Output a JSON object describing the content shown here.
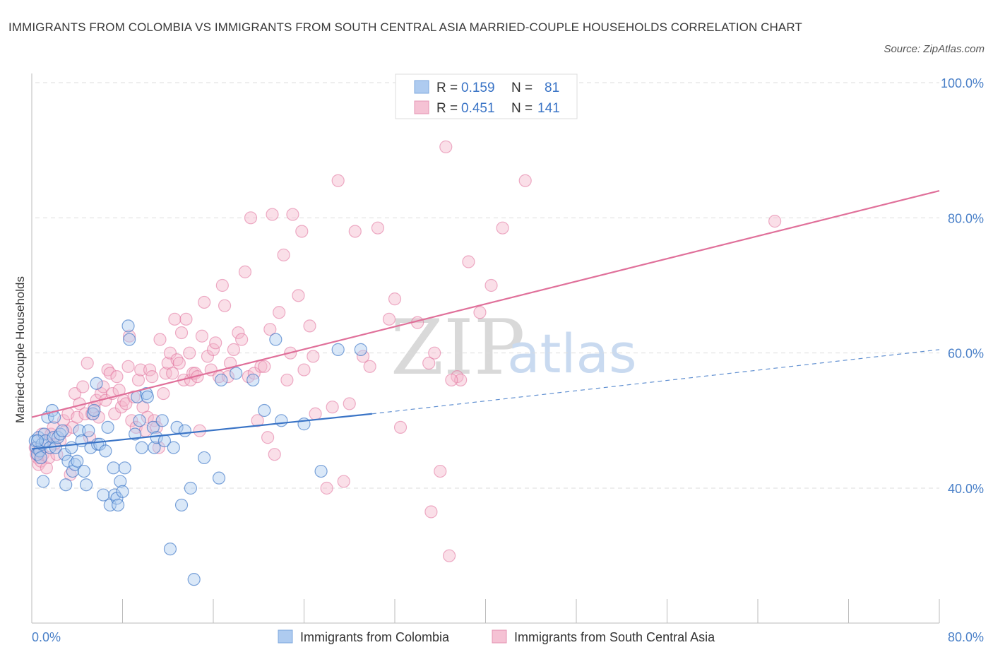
{
  "title": "IMMIGRANTS FROM COLOMBIA VS IMMIGRANTS FROM SOUTH CENTRAL ASIA MARRIED-COUPLE HOUSEHOLDS CORRELATION CHART",
  "source": "Source: ZipAtlas.com",
  "watermark": {
    "zip": "ZIP",
    "atlas": "atlas"
  },
  "legend_top": {
    "rows": [
      {
        "r_label": "R =",
        "r_value": "0.159",
        "n_label": "N =",
        "n_value": "81"
      },
      {
        "r_label": "R =",
        "r_value": "0.451",
        "n_label": "N =",
        "n_value": "141"
      }
    ]
  },
  "legend_bottom": [
    "Immigrants from Colombia",
    "Immigrants from South Central Asia"
  ],
  "colors": {
    "blue": "#3a74c6",
    "blue_fill": "#aecbf0",
    "pink": "#e0709a",
    "pink_fill": "#f5b8cd",
    "axis_text": "#4a80c8",
    "grid": "#dddddd"
  },
  "chart_data": {
    "type": "scatter",
    "title": "IMMIGRANTS FROM COLOMBIA VS IMMIGRANTS FROM SOUTH CENTRAL ASIA MARRIED-COUPLE HOUSEHOLDS CORRELATION CHART",
    "xlabel": "",
    "ylabel": "Married-couple Households",
    "xlim": [
      0,
      80
    ],
    "ylim": [
      20,
      104
    ],
    "x_tick_labels": [
      "0.0%",
      "80.0%"
    ],
    "y_ticks": [
      40,
      60,
      80,
      100
    ],
    "y_tick_labels": [
      "40.0%",
      "60.0%",
      "80.0%",
      "100.0%"
    ],
    "grid": true,
    "legend_position": "top-center",
    "series": [
      {
        "name": "Immigrants from Colombia",
        "color": "#3a74c6",
        "trend": {
          "x": [
            0,
            30
          ],
          "y": [
            45.8,
            51.0
          ],
          "dashed_to": [
            80,
            60.5
          ]
        },
        "points": [
          [
            0.3,
            47
          ],
          [
            0.4,
            46
          ],
          [
            0.5,
            45
          ],
          [
            0.6,
            47.5
          ],
          [
            0.7,
            45.5
          ],
          [
            0.8,
            44.5
          ],
          [
            0.9,
            46.5
          ],
          [
            1.0,
            41
          ],
          [
            1.1,
            48
          ],
          [
            1.2,
            47
          ],
          [
            1.4,
            50.5
          ],
          [
            1.6,
            46
          ],
          [
            1.8,
            51.5
          ],
          [
            1.9,
            47.5
          ],
          [
            2.0,
            50.5
          ],
          [
            2.1,
            46
          ],
          [
            2.3,
            47.5
          ],
          [
            2.5,
            48
          ],
          [
            2.7,
            48.5
          ],
          [
            2.9,
            45
          ],
          [
            3.0,
            40.5
          ],
          [
            3.2,
            44
          ],
          [
            3.5,
            46
          ],
          [
            3.6,
            42.5
          ],
          [
            3.8,
            43.5
          ],
          [
            4.0,
            44
          ],
          [
            4.2,
            48.5
          ],
          [
            4.4,
            47
          ],
          [
            4.6,
            42.5
          ],
          [
            4.8,
            40.5
          ],
          [
            5.0,
            48.5
          ],
          [
            5.2,
            46
          ],
          [
            5.4,
            51
          ],
          [
            5.5,
            51.5
          ],
          [
            5.7,
            55.5
          ],
          [
            5.8,
            46.5
          ],
          [
            6.0,
            46.5
          ],
          [
            6.3,
            39
          ],
          [
            6.5,
            45.5
          ],
          [
            6.7,
            49
          ],
          [
            6.9,
            37.5
          ],
          [
            7.2,
            43
          ],
          [
            7.3,
            39
          ],
          [
            7.5,
            38.5
          ],
          [
            7.6,
            37.5
          ],
          [
            7.8,
            41
          ],
          [
            8.0,
            39.5
          ],
          [
            8.2,
            43
          ],
          [
            8.5,
            64
          ],
          [
            8.6,
            62
          ],
          [
            9.1,
            48
          ],
          [
            9.3,
            53.5
          ],
          [
            9.5,
            50
          ],
          [
            9.7,
            46
          ],
          [
            10.1,
            54
          ],
          [
            10.2,
            53.5
          ],
          [
            10.7,
            49
          ],
          [
            10.8,
            46
          ],
          [
            11.0,
            47.5
          ],
          [
            11.5,
            50
          ],
          [
            11.7,
            47
          ],
          [
            12.2,
            31
          ],
          [
            12.5,
            46
          ],
          [
            12.8,
            49
          ],
          [
            13.2,
            37.5
          ],
          [
            13.5,
            48.5
          ],
          [
            14.0,
            40
          ],
          [
            14.3,
            26.5
          ],
          [
            15.2,
            44.5
          ],
          [
            16.5,
            41.5
          ],
          [
            16.7,
            56
          ],
          [
            18.0,
            57
          ],
          [
            19.5,
            56
          ],
          [
            20.5,
            51.5
          ],
          [
            22.0,
            50
          ],
          [
            21.5,
            62
          ],
          [
            24.0,
            49.5
          ],
          [
            25.5,
            42.5
          ],
          [
            27.0,
            60.5
          ],
          [
            29.0,
            60.5
          ],
          [
            0.5,
            47
          ]
        ]
      },
      {
        "name": "Immigrants from South Central Asia",
        "color": "#e0709a",
        "trend": {
          "x": [
            0,
            80
          ],
          "y": [
            50.5,
            84.0
          ]
        },
        "points": [
          [
            0.3,
            46
          ],
          [
            0.4,
            45
          ],
          [
            0.5,
            44.5
          ],
          [
            0.6,
            43.5
          ],
          [
            0.7,
            46
          ],
          [
            0.8,
            44
          ],
          [
            0.9,
            48
          ],
          [
            1.0,
            45
          ],
          [
            1.2,
            47
          ],
          [
            1.3,
            43
          ],
          [
            1.5,
            44.5
          ],
          [
            1.7,
            48
          ],
          [
            1.9,
            49
          ],
          [
            2.0,
            46.5
          ],
          [
            2.2,
            45
          ],
          [
            2.5,
            47
          ],
          [
            2.8,
            50
          ],
          [
            3.0,
            48.5
          ],
          [
            3.2,
            51
          ],
          [
            3.4,
            42
          ],
          [
            3.6,
            49
          ],
          [
            3.8,
            54
          ],
          [
            4.0,
            50.5
          ],
          [
            4.2,
            52.5
          ],
          [
            4.5,
            55
          ],
          [
            4.7,
            51
          ],
          [
            4.9,
            58.5
          ],
          [
            5.1,
            47.5
          ],
          [
            5.3,
            51
          ],
          [
            5.5,
            52
          ],
          [
            5.7,
            53
          ],
          [
            5.9,
            50.5
          ],
          [
            6.1,
            54
          ],
          [
            6.3,
            55
          ],
          [
            6.5,
            53
          ],
          [
            6.7,
            57.5
          ],
          [
            6.9,
            57
          ],
          [
            7.1,
            54
          ],
          [
            7.3,
            51
          ],
          [
            7.5,
            56.5
          ],
          [
            7.7,
            54.5
          ],
          [
            7.9,
            52
          ],
          [
            8.1,
            53
          ],
          [
            8.3,
            52.5
          ],
          [
            8.5,
            58
          ],
          [
            8.6,
            62.5
          ],
          [
            8.8,
            50
          ],
          [
            9.0,
            53.5
          ],
          [
            9.2,
            49
          ],
          [
            9.4,
            56
          ],
          [
            9.6,
            57.5
          ],
          [
            9.8,
            52
          ],
          [
            10.0,
            48.5
          ],
          [
            10.2,
            50.5
          ],
          [
            10.4,
            57.5
          ],
          [
            10.6,
            56.5
          ],
          [
            10.8,
            50
          ],
          [
            11.0,
            49
          ],
          [
            11.2,
            46
          ],
          [
            11.3,
            62
          ],
          [
            11.6,
            54
          ],
          [
            11.8,
            57
          ],
          [
            12.0,
            58.5
          ],
          [
            12.2,
            60
          ],
          [
            12.4,
            57
          ],
          [
            12.6,
            65
          ],
          [
            12.8,
            59
          ],
          [
            13.0,
            58.5
          ],
          [
            13.2,
            63
          ],
          [
            13.4,
            56
          ],
          [
            13.6,
            65
          ],
          [
            13.9,
            60
          ],
          [
            14.0,
            56
          ],
          [
            14.2,
            57
          ],
          [
            14.4,
            57
          ],
          [
            14.6,
            56.5
          ],
          [
            14.8,
            48.5
          ],
          [
            15.0,
            62.5
          ],
          [
            15.2,
            67.5
          ],
          [
            15.5,
            59.5
          ],
          [
            15.8,
            57.5
          ],
          [
            16.0,
            60.5
          ],
          [
            16.2,
            61.5
          ],
          [
            16.5,
            56.5
          ],
          [
            16.8,
            70
          ],
          [
            17.0,
            67
          ],
          [
            17.3,
            56.5
          ],
          [
            17.5,
            58.5
          ],
          [
            17.8,
            60.5
          ],
          [
            18.2,
            63
          ],
          [
            18.5,
            62
          ],
          [
            18.8,
            72
          ],
          [
            19.1,
            56.5
          ],
          [
            19.3,
            80
          ],
          [
            19.6,
            57
          ],
          [
            19.9,
            50
          ],
          [
            20.2,
            58
          ],
          [
            20.5,
            58
          ],
          [
            20.8,
            47.5
          ],
          [
            21.0,
            63.5
          ],
          [
            21.2,
            80.5
          ],
          [
            21.4,
            45
          ],
          [
            21.8,
            66
          ],
          [
            22.2,
            74.5
          ],
          [
            22.5,
            56
          ],
          [
            22.8,
            60
          ],
          [
            23.0,
            80.5
          ],
          [
            23.5,
            68.5
          ],
          [
            23.8,
            78
          ],
          [
            24.0,
            57.5
          ],
          [
            24.5,
            64
          ],
          [
            24.8,
            59.5
          ],
          [
            25.0,
            51
          ],
          [
            26.0,
            40
          ],
          [
            26.5,
            52
          ],
          [
            27.0,
            85.5
          ],
          [
            27.5,
            41
          ],
          [
            28.0,
            52.5
          ],
          [
            28.5,
            78
          ],
          [
            29.2,
            59.5
          ],
          [
            29.8,
            58
          ],
          [
            30.5,
            78.5
          ],
          [
            31.5,
            65
          ],
          [
            32.0,
            68
          ],
          [
            32.5,
            49
          ],
          [
            35.0,
            58.5
          ],
          [
            35.5,
            60
          ],
          [
            35.2,
            36.5
          ],
          [
            36.0,
            42.5
          ],
          [
            36.5,
            90.5
          ],
          [
            36.8,
            30
          ],
          [
            37.5,
            56.5
          ],
          [
            37.8,
            56
          ],
          [
            38.5,
            73.5
          ],
          [
            39.5,
            66
          ],
          [
            40.5,
            70
          ],
          [
            41.5,
            78.5
          ],
          [
            43.5,
            85.5
          ],
          [
            65.5,
            79.5
          ],
          [
            37.0,
            56
          ],
          [
            34.0,
            64.5
          ]
        ]
      }
    ]
  }
}
